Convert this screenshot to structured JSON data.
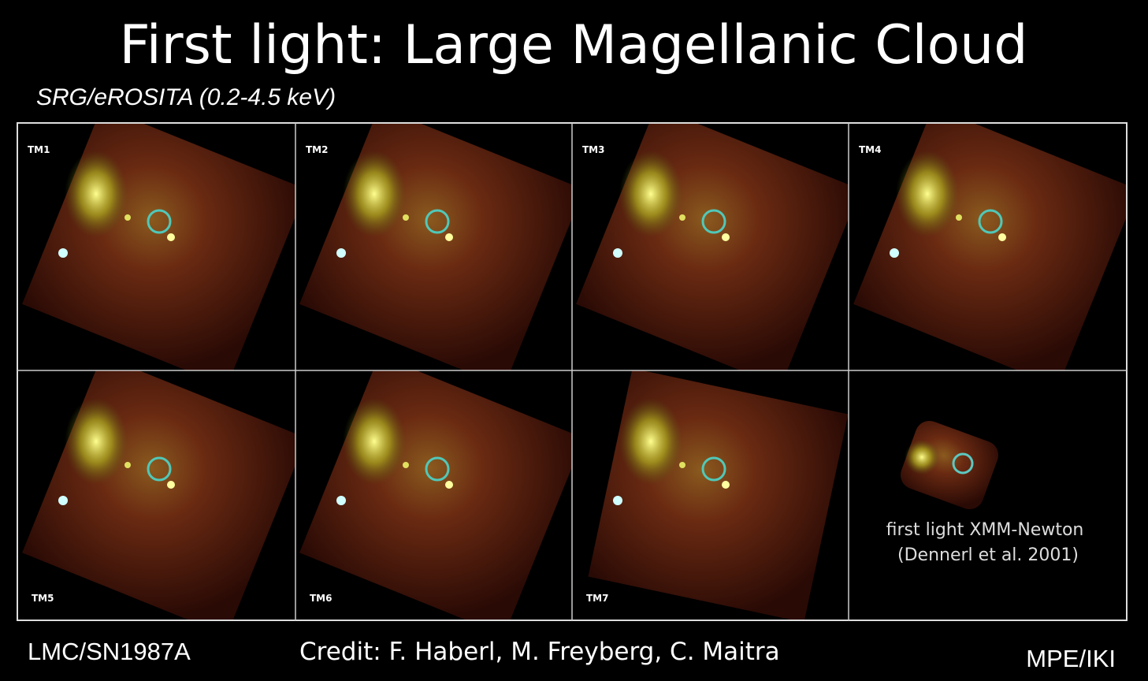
{
  "header": {
    "title": "First light: Large Magellanic Cloud",
    "subtitle": "SRG/eROSITA (0.2-4.5 keV)"
  },
  "panels": [
    "TM1",
    "TM2",
    "TM3",
    "TM4",
    "TM5",
    "TM6",
    "TM7"
  ],
  "comparison": {
    "caption_line1": "first light XMM-Newton",
    "caption_line2": "(Dennerl et al. 2001)"
  },
  "footer": {
    "left": "LMC/SN1987A",
    "center": "Credit: F. Haberl, M. Freyberg, C. Maitra",
    "right": "MPE/IKI"
  }
}
